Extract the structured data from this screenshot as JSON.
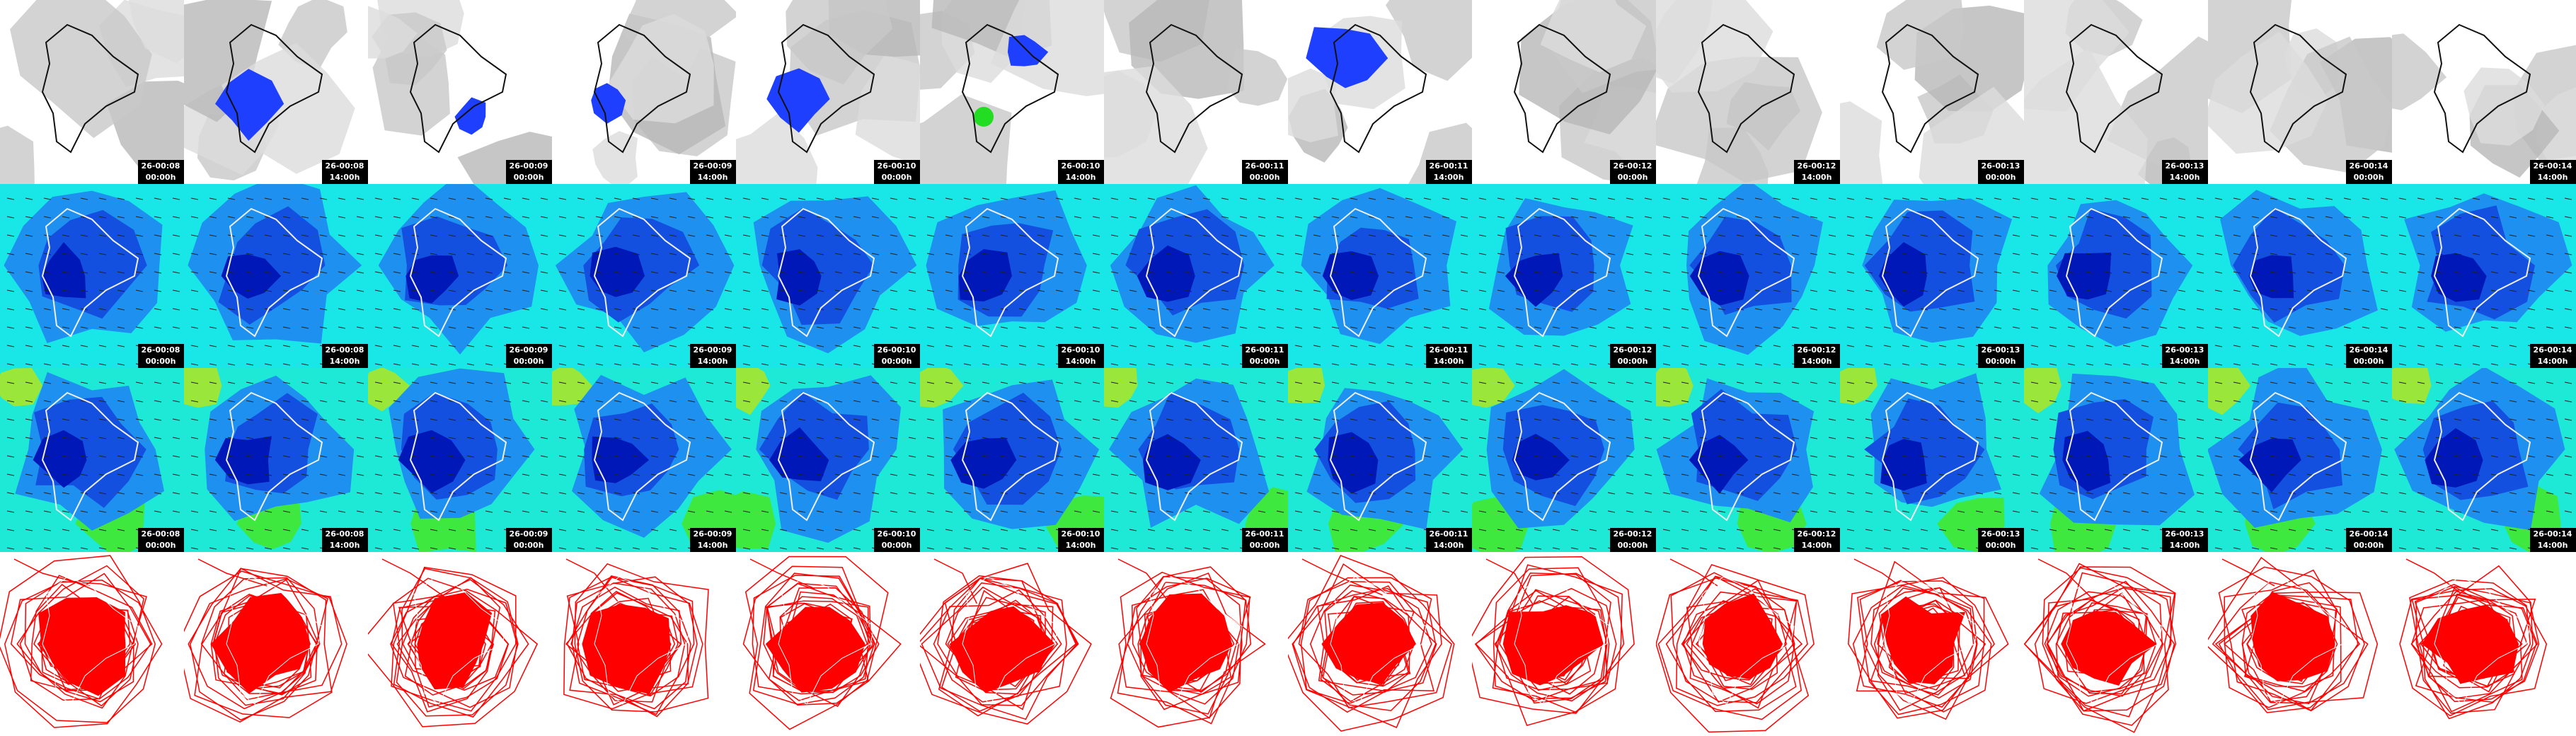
{
  "columns": [
    {
      "date": "26-00:08",
      "time": "00:00h"
    },
    {
      "date": "26-00:08",
      "time": "14:00h"
    },
    {
      "date": "26-00:09",
      "time": "00:00h"
    },
    {
      "date": "26-00:09",
      "time": "14:00h"
    },
    {
      "date": "26-00:10",
      "time": "00:00h"
    },
    {
      "date": "26-00:10",
      "time": "14:00h"
    },
    {
      "date": "26-00:11",
      "time": "00:00h"
    },
    {
      "date": "26-00:11",
      "time": "14:00h"
    },
    {
      "date": "26-00:12",
      "time": "00:00h"
    },
    {
      "date": "26-00:12",
      "time": "14:00h"
    },
    {
      "date": "26-00:13",
      "time": "00:00h"
    },
    {
      "date": "26-00:13",
      "time": "14:00h"
    },
    {
      "date": "26-00:14",
      "time": "00:00h"
    },
    {
      "date": "26-00:14",
      "time": "14:00h"
    }
  ]
}
